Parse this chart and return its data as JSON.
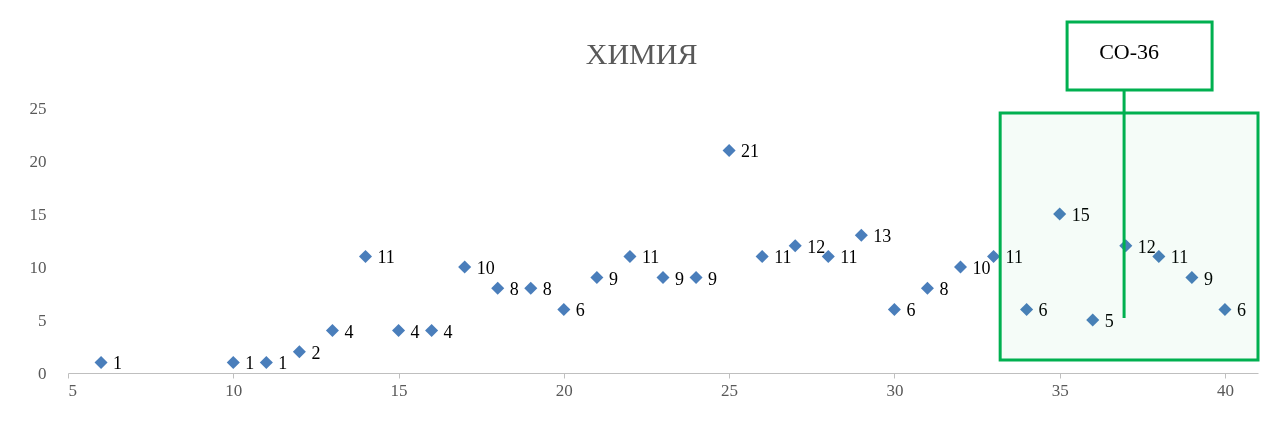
{
  "chart_data": {
    "type": "scatter",
    "title": "ХИМИЯ",
    "x": [
      6,
      10,
      11,
      12,
      13,
      14,
      15,
      16,
      17,
      18,
      19,
      20,
      21,
      22,
      23,
      24,
      25,
      26,
      27,
      28,
      29,
      30,
      31,
      32,
      33,
      34,
      35,
      36,
      37,
      38,
      39,
      40
    ],
    "series": [
      {
        "color": "#4a7ebb",
        "values": [
          1,
          1,
          1,
          2,
          4,
          11,
          4,
          4,
          10,
          8,
          8,
          6,
          9,
          11,
          9,
          9,
          21,
          11,
          12,
          11,
          13,
          6,
          8,
          10,
          11,
          6,
          15,
          5,
          12,
          11,
          9,
          6
        ]
      }
    ],
    "marker": "diamond",
    "data_labels": true,
    "grid": false,
    "xlim": [
      5,
      41
    ],
    "xticks": [
      5,
      10,
      15,
      20,
      25,
      30,
      35,
      40
    ],
    "ylim": [
      0,
      25
    ],
    "yticks": [
      0,
      5,
      10,
      15,
      20,
      25
    ],
    "bands": [
      {
        "axis": "x",
        "from": 33.2,
        "to": 41,
        "label": "СО-36",
        "color": "#00b050"
      }
    ]
  }
}
